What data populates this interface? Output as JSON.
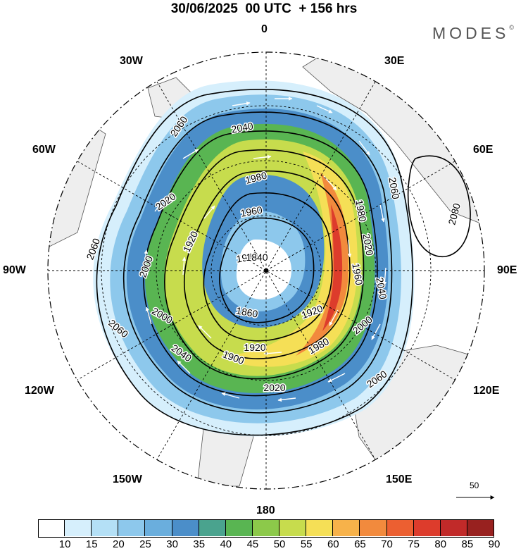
{
  "header": {
    "title": "30/06/2025  00 UTC  + 156 hrs",
    "brand": "MODES"
  },
  "map": {
    "projection": "north-polar-stereographic",
    "longitude_labels": [
      "0",
      "30E",
      "60E",
      "90E",
      "120E",
      "150E",
      "180",
      "150W",
      "120W",
      "90W",
      "60W",
      "30W"
    ],
    "contour_labels": [
      "2060",
      "2060",
      "2060",
      "2060",
      "2060",
      "2040",
      "2040",
      "2040",
      "2020",
      "2020",
      "2020",
      "2000",
      "2000",
      "2000",
      "1980",
      "1980",
      "1980",
      "1960",
      "1960",
      "1940",
      "1920",
      "1920",
      "1900",
      "1840",
      "1860",
      "1920",
      "2080"
    ],
    "shaded_field_levels": [
      10,
      15,
      20,
      25,
      30,
      35,
      40,
      45,
      50,
      55,
      60,
      65,
      70,
      75,
      80,
      85,
      90
    ],
    "vector_reference": "50"
  },
  "colorbar": {
    "ticks": [
      "10",
      "15",
      "20",
      "25",
      "30",
      "35",
      "40",
      "45",
      "50",
      "55",
      "60",
      "65",
      "70",
      "75",
      "80",
      "85",
      "90"
    ],
    "colors": [
      "#ffffff",
      "#d6effc",
      "#b4e0f6",
      "#8dc8ec",
      "#6aaedd",
      "#4b8ec9",
      "#4aa38e",
      "#59b552",
      "#8cc94a",
      "#c7dc4d",
      "#f5df56",
      "#f7b24a",
      "#f28a3d",
      "#ec5f31",
      "#dd3c2c",
      "#c12a29",
      "#98211f"
    ]
  },
  "colors": {
    "land": "#eeeeee",
    "coast": "#555555",
    "contour": "#000000",
    "wind_vector": "#ffffff"
  }
}
